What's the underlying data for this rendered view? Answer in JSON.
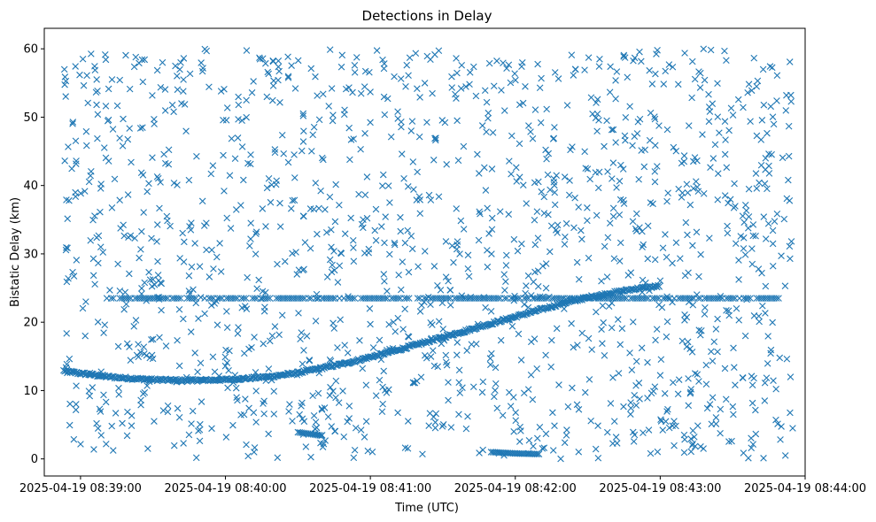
{
  "chart_data": {
    "type": "scatter",
    "title": "Detections in Delay",
    "xlabel": "Time (UTC)",
    "ylabel": "Bistatic Delay (km)",
    "x_ticks": [
      "2025-04-19 08:39:00",
      "2025-04-19 08:40:00",
      "2025-04-19 08:41:00",
      "2025-04-19 08:42:00",
      "2025-04-19 08:43:00",
      "2025-04-19 08:44:00"
    ],
    "y_ticks": [
      "0",
      "10",
      "20",
      "30",
      "40",
      "50",
      "60"
    ],
    "xlim": [
      "2025-04-19 08:38:45",
      "2025-04-19 08:44:00"
    ],
    "ylim": [
      -2.5,
      63
    ],
    "marker": "x",
    "color": "#1f77b4",
    "grid": false,
    "series": [
      {
        "kind": "target track",
        "points": [
          [
            "2025-04-19 08:38:53",
            12.9
          ],
          [
            "2025-04-19 08:38:58",
            12.6
          ],
          [
            "2025-04-19 08:39:05",
            12.3
          ],
          [
            "2025-04-19 08:39:12",
            12.0
          ],
          [
            "2025-04-19 08:39:20",
            11.8
          ],
          [
            "2025-04-19 08:39:30",
            11.6
          ],
          [
            "2025-04-19 08:39:40",
            11.5
          ],
          [
            "2025-04-19 08:39:50",
            11.5
          ],
          [
            "2025-04-19 08:40:00",
            11.6
          ],
          [
            "2025-04-19 08:40:10",
            11.8
          ],
          [
            "2025-04-19 08:40:20",
            12.1
          ],
          [
            "2025-04-19 08:40:30",
            12.6
          ],
          [
            "2025-04-19 08:40:40",
            13.3
          ],
          [
            "2025-04-19 08:40:50",
            14.0
          ],
          [
            "2025-04-19 08:41:00",
            14.9
          ],
          [
            "2025-04-19 08:41:10",
            15.8
          ],
          [
            "2025-04-19 08:41:20",
            16.8
          ],
          [
            "2025-04-19 08:41:30",
            17.8
          ],
          [
            "2025-04-19 08:41:40",
            18.8
          ],
          [
            "2025-04-19 08:41:50",
            19.8
          ],
          [
            "2025-04-19 08:42:00",
            20.8
          ],
          [
            "2025-04-19 08:42:10",
            21.8
          ],
          [
            "2025-04-19 08:42:20",
            22.8
          ],
          [
            "2025-04-19 08:42:30",
            23.6
          ],
          [
            "2025-04-19 08:42:40",
            24.3
          ],
          [
            "2025-04-19 08:42:50",
            24.9
          ],
          [
            "2025-04-19 08:43:00",
            25.3
          ]
        ]
      },
      {
        "kind": "constant delay line",
        "y": 23.5,
        "x_range": [
          "2025-04-19 08:39:10",
          "2025-04-19 08:43:50"
        ]
      },
      {
        "kind": "secondary track",
        "points": [
          [
            "2025-04-19 08:40:30",
            3.9
          ],
          [
            "2025-04-19 08:40:40",
            3.4
          ],
          [
            "2025-04-19 08:41:30",
            1.6
          ],
          [
            "2025-04-19 08:41:50",
            1.0
          ],
          [
            "2025-04-19 08:42:00",
            0.8
          ],
          [
            "2025-04-19 08:42:10",
            0.7
          ]
        ]
      },
      {
        "kind": "scattered false alarms",
        "count_shown": 1500,
        "x_range": [
          "2025-04-19 08:38:53",
          "2025-04-19 08:43:55"
        ],
        "y_range": [
          0,
          60
        ]
      }
    ]
  }
}
